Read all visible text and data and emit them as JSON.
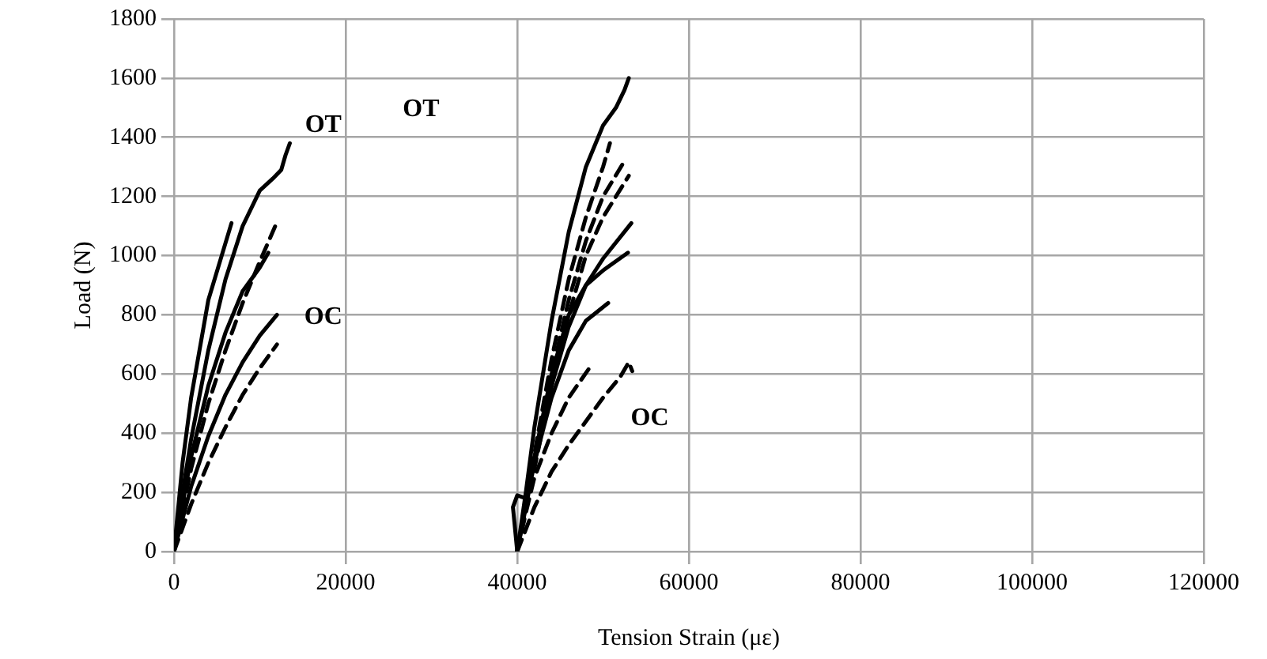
{
  "chart_data": {
    "type": "line",
    "xlabel": "Tension Strain (με)",
    "ylabel": "Load (N)",
    "xlim": [
      0,
      120000
    ],
    "xticks": [
      0,
      20000,
      40000,
      60000,
      80000,
      100000,
      120000
    ],
    "ylim": [
      0,
      1800
    ],
    "yticks": [
      0,
      200,
      400,
      600,
      800,
      1000,
      1200,
      1400,
      1600,
      1800
    ],
    "grid": true,
    "legend": false,
    "marker": "none",
    "series": [
      {
        "color": "#000000",
        "line_style": "solid",
        "x": [
          0,
          1000,
          2000,
          4000,
          6000,
          8000,
          10000,
          11500,
          12500,
          13000,
          13500
        ],
        "values": [
          0,
          200,
          380,
          680,
          920,
          1100,
          1220,
          1260,
          1290,
          1340,
          1380
        ]
      },
      {
        "color": "#000000",
        "line_style": "solid",
        "x": [
          0,
          1000,
          2000,
          4000,
          6700
        ],
        "values": [
          0,
          300,
          520,
          850,
          1110
        ]
      },
      {
        "color": "#000000",
        "line_style": "dashed",
        "x": [
          0,
          2000,
          4000,
          6000,
          8000,
          10000,
          11800
        ],
        "values": [
          0,
          280,
          500,
          680,
          840,
          980,
          1100
        ]
      },
      {
        "color": "#000000",
        "line_style": "solid",
        "x": [
          0,
          2000,
          4000,
          6000,
          8000,
          10000,
          11000
        ],
        "values": [
          0,
          320,
          560,
          740,
          880,
          960,
          1010
        ]
      },
      {
        "color": "#000000",
        "line_style": "solid",
        "x": [
          0,
          2000,
          4000,
          6000,
          8000,
          10000,
          12000
        ],
        "values": [
          0,
          220,
          390,
          530,
          640,
          730,
          800
        ]
      },
      {
        "color": "#000000",
        "line_style": "dashed",
        "x": [
          0,
          2000,
          4000,
          6000,
          8000,
          10000,
          12000
        ],
        "values": [
          0,
          160,
          300,
          420,
          530,
          620,
          700
        ]
      },
      {
        "color": "#000000",
        "line_style": "solid",
        "x": [
          40000,
          41000,
          42000,
          44000,
          46000,
          48000,
          50000,
          51500,
          52500,
          53000
        ],
        "values": [
          0,
          200,
          420,
          780,
          1080,
          1300,
          1440,
          1500,
          1560,
          1600
        ]
      },
      {
        "color": "#000000",
        "line_style": "dashed",
        "x": [
          40000,
          42000,
          44000,
          46000,
          48000,
          50000,
          50800
        ],
        "values": [
          0,
          330,
          650,
          920,
          1130,
          1300,
          1380
        ]
      },
      {
        "color": "#000000",
        "line_style": "dashed",
        "x": [
          40000,
          42000,
          44000,
          46000,
          48000,
          50000,
          52500
        ],
        "values": [
          0,
          300,
          600,
          850,
          1050,
          1200,
          1320
        ]
      },
      {
        "color": "#000000",
        "line_style": "dashed",
        "x": [
          40000,
          42000,
          44000,
          46000,
          48000,
          50000,
          53000
        ],
        "values": [
          0,
          280,
          560,
          800,
          1000,
          1130,
          1270
        ]
      },
      {
        "color": "#000000",
        "line_style": "solid",
        "x": [
          40000,
          42000,
          44000,
          46000,
          48000,
          50000,
          53300
        ],
        "values": [
          0,
          300,
          560,
          760,
          900,
          990,
          1110
        ]
      },
      {
        "color": "#000000",
        "line_style": "solid",
        "x": [
          40000,
          42000,
          44000,
          46000,
          48000,
          50000,
          52900
        ],
        "values": [
          0,
          320,
          600,
          800,
          900,
          950,
          1010
        ]
      },
      {
        "color": "#000000",
        "line_style": "solid",
        "x": [
          40000,
          39500,
          40000,
          41000,
          42000,
          44000,
          46000,
          48000,
          50600
        ],
        "values": [
          0,
          150,
          190,
          180,
          300,
          520,
          680,
          780,
          840
        ]
      },
      {
        "color": "#000000",
        "line_style": "dashed",
        "x": [
          40000,
          41000,
          42000,
          44000,
          46000,
          48400
        ],
        "values": [
          0,
          130,
          250,
          400,
          520,
          620
        ]
      },
      {
        "color": "#000000",
        "line_style": "dashed",
        "x": [
          40000,
          42000,
          44000,
          46000,
          48000,
          50000,
          52000,
          53000,
          53400
        ],
        "values": [
          0,
          150,
          270,
          360,
          440,
          520,
          590,
          640,
          610
        ]
      }
    ],
    "annotations": [
      "OT",
      "OC",
      "OT",
      "OC"
    ]
  }
}
